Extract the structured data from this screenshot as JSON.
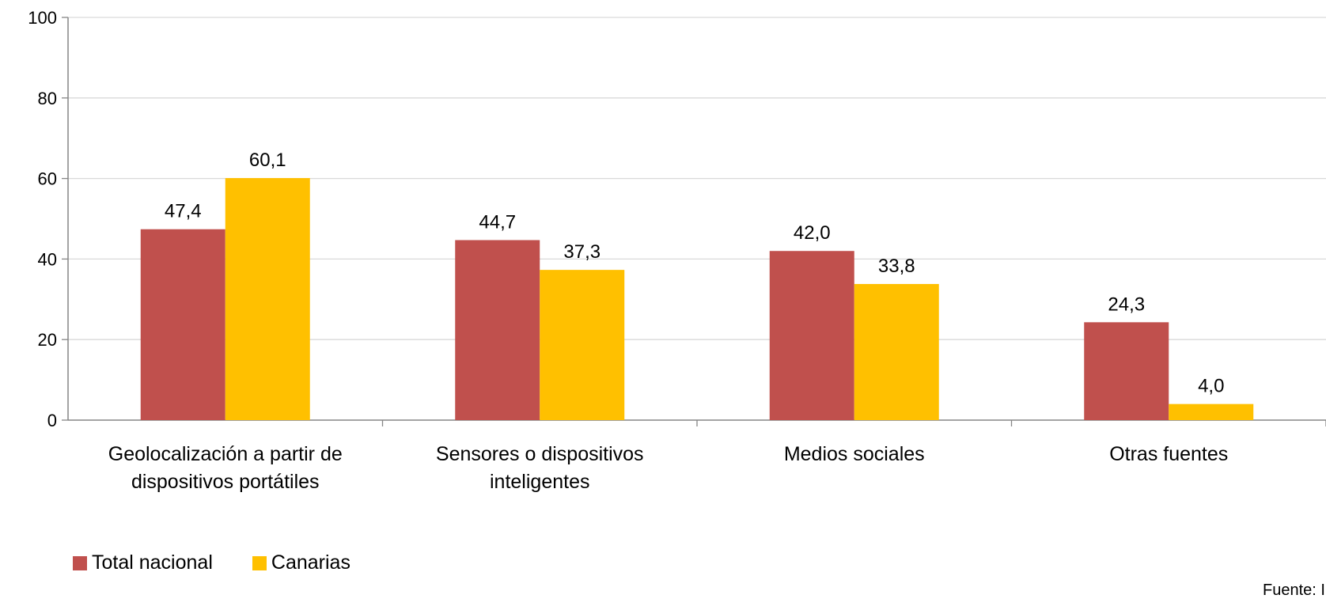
{
  "chart_data": {
    "type": "bar",
    "title": "",
    "xlabel": "",
    "ylabel": "",
    "ylim": [
      0,
      100
    ],
    "yticks": [
      0,
      20,
      40,
      60,
      80,
      100
    ],
    "grid": true,
    "legend_position": "bottom-left",
    "categories": [
      [
        "Geolocalización a partir de",
        "dispositivos portátiles"
      ],
      [
        "Sensores o dispositivos",
        "inteligentes"
      ],
      [
        "Medios sociales"
      ],
      [
        "Otras fuentes"
      ]
    ],
    "series": [
      {
        "name": "Total nacional",
        "color": "#c0504d",
        "values": [
          47.4,
          44.7,
          42.0,
          24.3
        ],
        "labels": [
          "47,4",
          "44,7",
          "42,0",
          "24,3"
        ]
      },
      {
        "name": "Canarias",
        "color": "#ffc000",
        "values": [
          60.1,
          37.3,
          33.8,
          4.0
        ],
        "labels": [
          "60,1",
          "37,3",
          "33,8",
          "4,0"
        ]
      }
    ]
  },
  "source_text": "Fuente: INE"
}
